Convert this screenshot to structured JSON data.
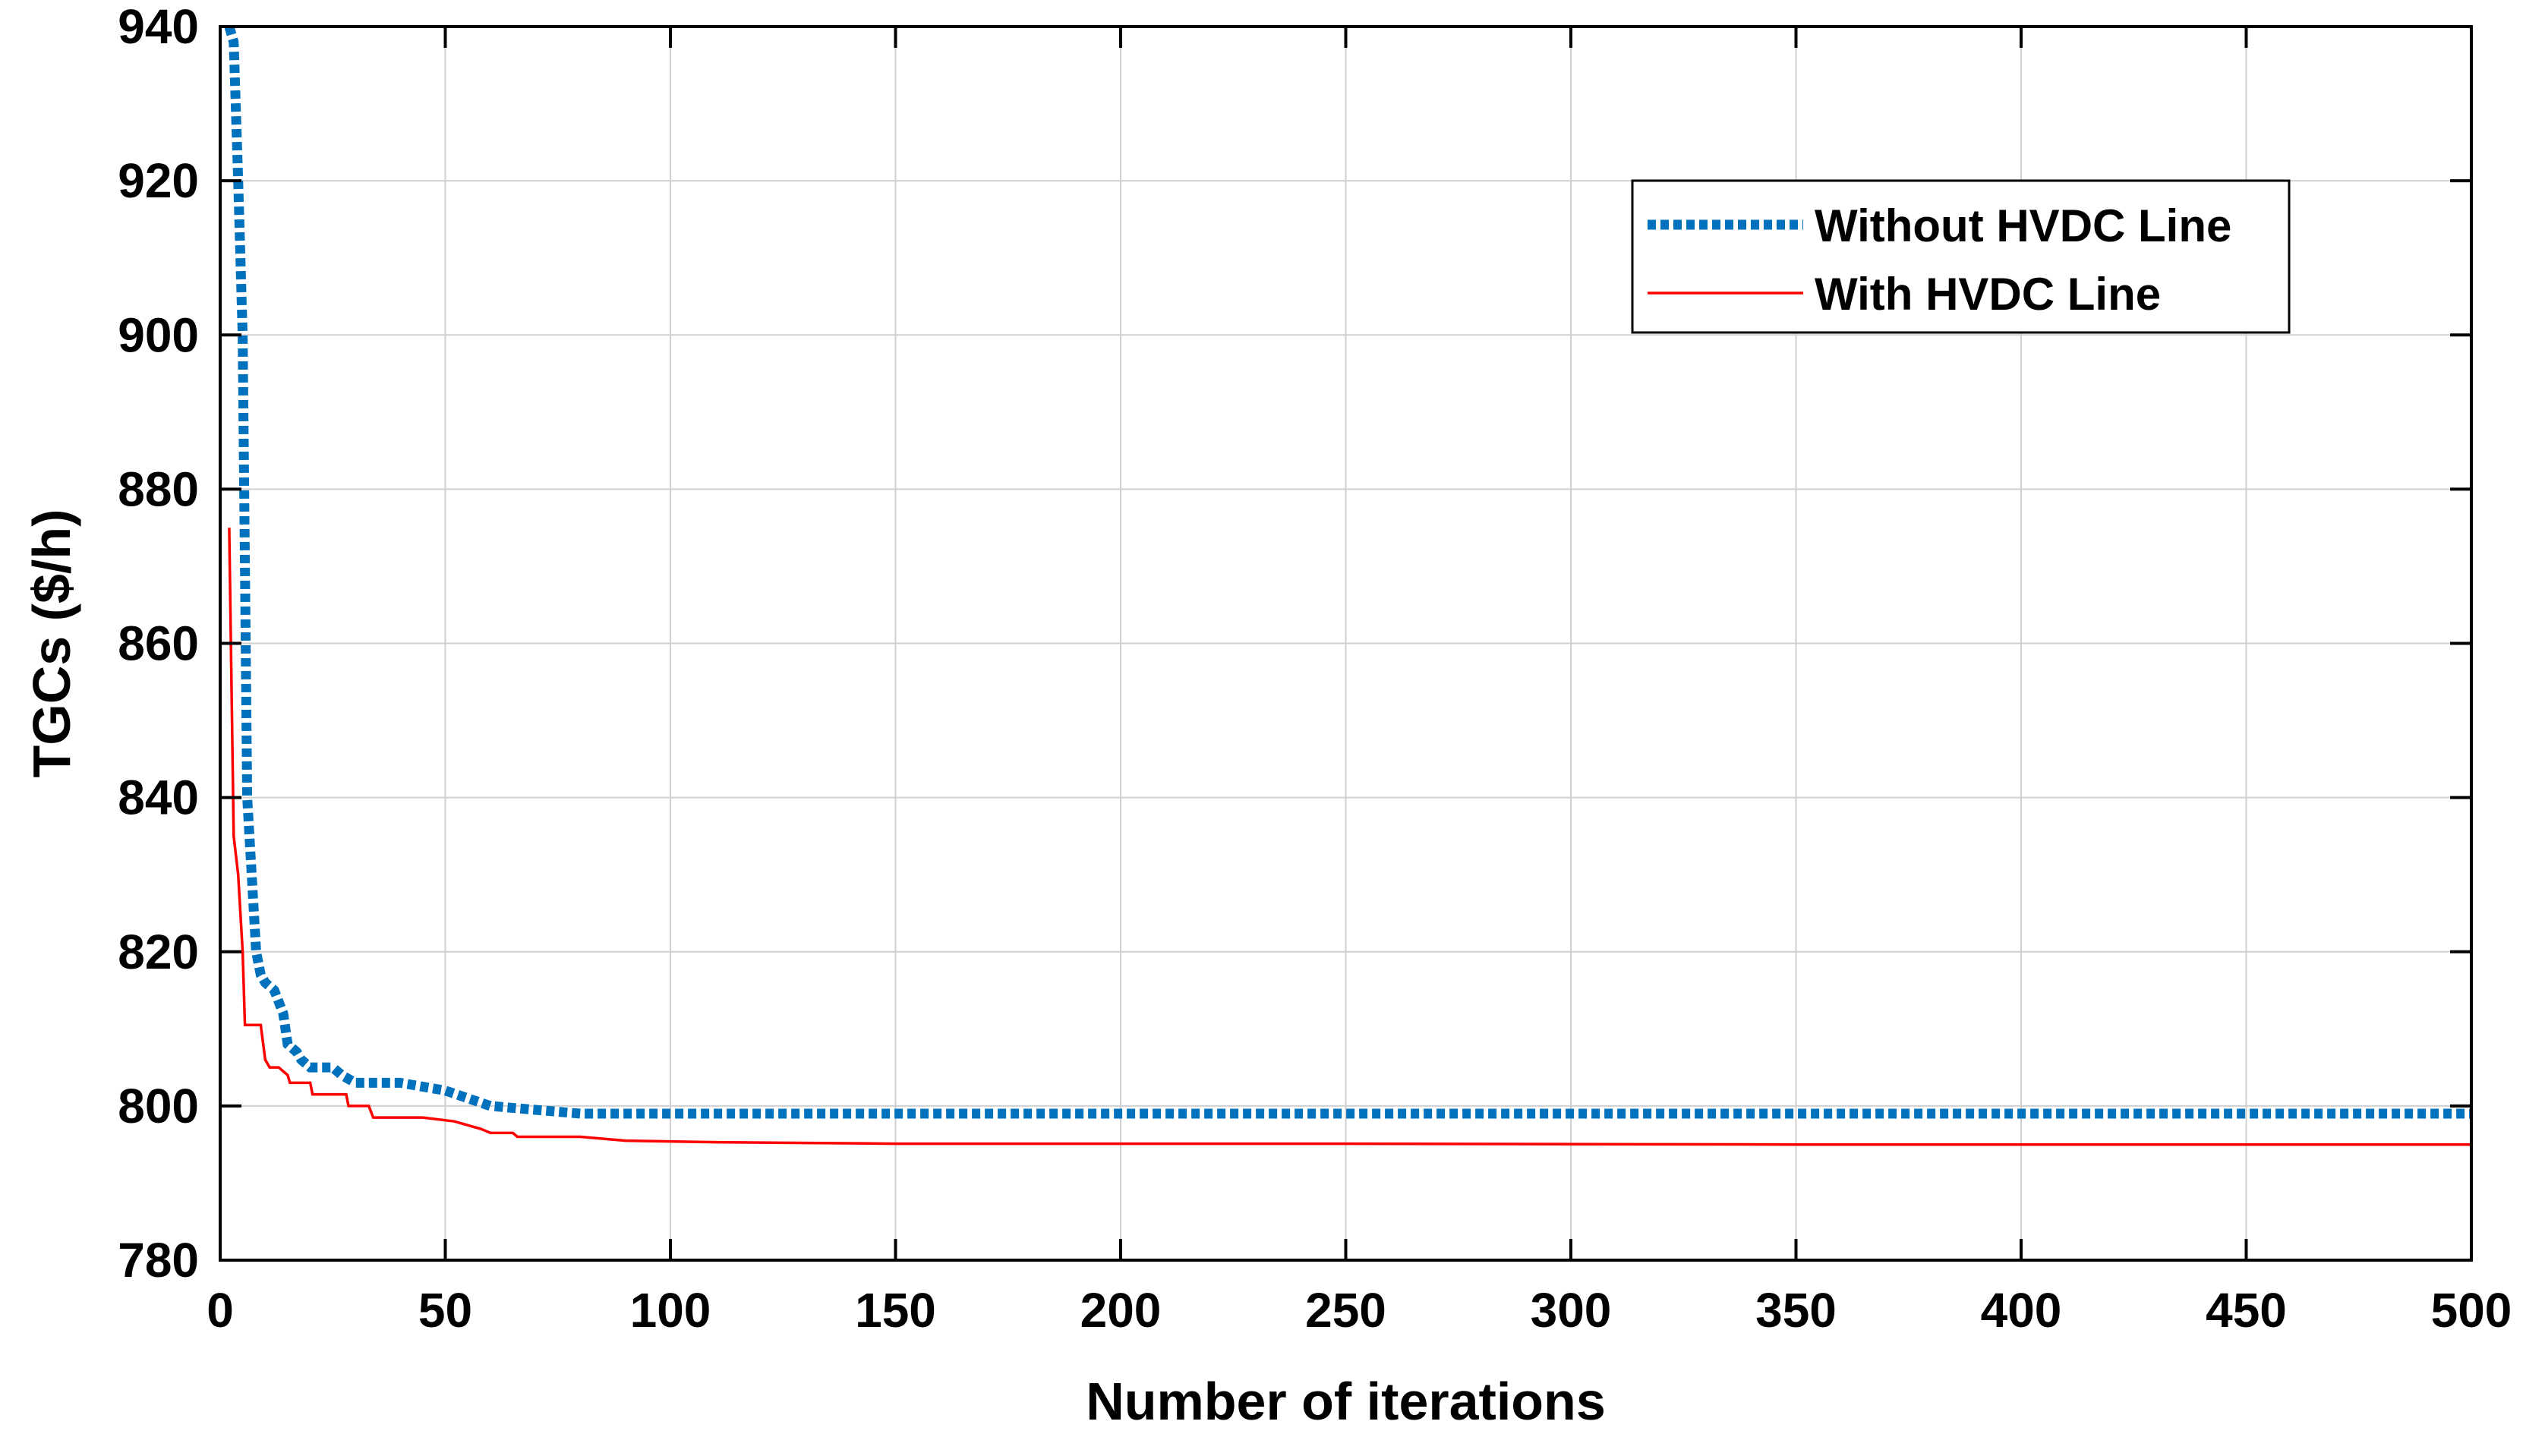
{
  "chart_data": {
    "type": "line",
    "xlabel": "Number of iterations",
    "ylabel": "TGCs ($/h)",
    "xlim": [
      0,
      500
    ],
    "ylim": [
      780,
      940
    ],
    "yticks_top": 940,
    "xticks": [
      0,
      50,
      100,
      150,
      200,
      250,
      300,
      350,
      400,
      450,
      500
    ],
    "yticks": [
      780,
      800,
      820,
      840,
      860,
      880,
      900,
      920,
      940
    ],
    "grid": true,
    "legend_position": "top-right",
    "series": [
      {
        "name": "Without HVDC Line",
        "color": "#0072BD",
        "style": "dotted",
        "points": [
          [
            2,
            940
          ],
          [
            3,
            938
          ],
          [
            4,
            920
          ],
          [
            5,
            900
          ],
          [
            6,
            840
          ],
          [
            7,
            830
          ],
          [
            8,
            820
          ],
          [
            9,
            817
          ],
          [
            10,
            816
          ],
          [
            12,
            815
          ],
          [
            14,
            812
          ],
          [
            15,
            808
          ],
          [
            17,
            807
          ],
          [
            18,
            806
          ],
          [
            20,
            805
          ],
          [
            25,
            805
          ],
          [
            27,
            804
          ],
          [
            30,
            803
          ],
          [
            40,
            803
          ],
          [
            50,
            802
          ],
          [
            60,
            800
          ],
          [
            70,
            799.5
          ],
          [
            80,
            799
          ],
          [
            100,
            799
          ],
          [
            150,
            799
          ],
          [
            200,
            799
          ],
          [
            300,
            799
          ],
          [
            400,
            799
          ],
          [
            500,
            799
          ]
        ]
      },
      {
        "name": "With HVDC Line",
        "color": "#FF0000",
        "style": "solid",
        "points": [
          [
            2,
            875
          ],
          [
            3,
            835
          ],
          [
            4,
            830
          ],
          [
            5,
            820
          ],
          [
            5.5,
            810.5
          ],
          [
            9,
            810.5
          ],
          [
            10,
            806
          ],
          [
            11,
            805
          ],
          [
            13,
            805
          ],
          [
            15,
            804
          ],
          [
            15.5,
            803
          ],
          [
            20,
            803
          ],
          [
            20.5,
            801.5
          ],
          [
            28,
            801.5
          ],
          [
            28.5,
            800
          ],
          [
            33,
            800
          ],
          [
            34,
            798.5
          ],
          [
            45,
            798.5
          ],
          [
            52,
            798
          ],
          [
            58,
            797
          ],
          [
            60,
            796.5
          ],
          [
            65,
            796.5
          ],
          [
            66,
            796
          ],
          [
            80,
            796
          ],
          [
            90,
            795.5
          ],
          [
            110,
            795.3
          ],
          [
            150,
            795.1
          ],
          [
            250,
            795.1
          ],
          [
            350,
            795
          ],
          [
            500,
            795
          ]
        ]
      }
    ]
  }
}
